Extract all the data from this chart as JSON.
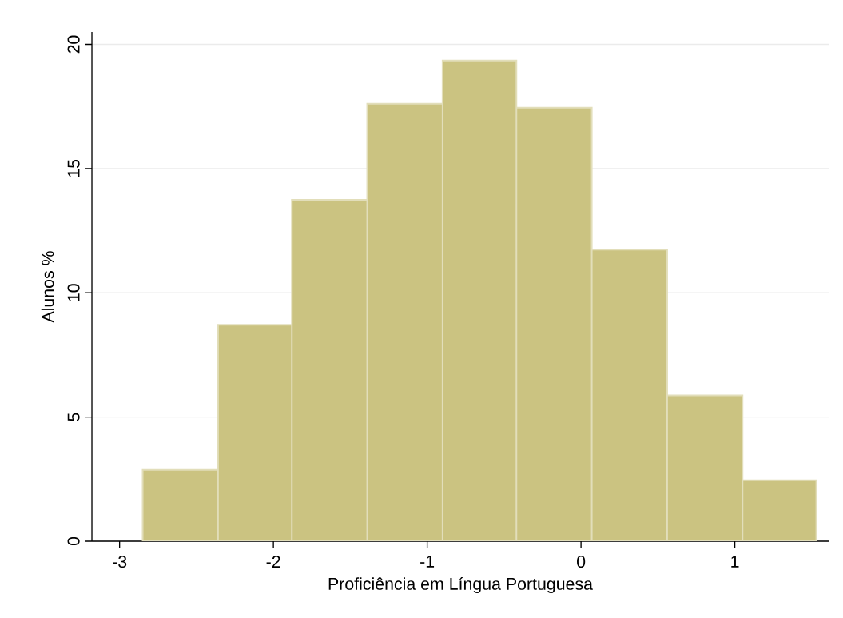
{
  "chart_data": {
    "type": "histogram",
    "xlabel": "Proficiência em Língua Portuguesa",
    "ylabel": "Alunos %",
    "bins": [
      -2.85,
      -2.36,
      -1.88,
      -1.39,
      -0.9,
      -0.42,
      0.07,
      0.56,
      1.05,
      1.53
    ],
    "values": [
      2.87,
      8.71,
      13.74,
      17.61,
      19.35,
      17.45,
      11.74,
      5.87,
      2.45
    ],
    "color": "#cbc381",
    "xlim": [
      -3.18,
      1.61
    ],
    "ylim": [
      0,
      20.5
    ],
    "xticks": [
      -3,
      -2,
      -1,
      0,
      1
    ],
    "yticks": [
      0,
      5,
      10,
      15,
      20
    ],
    "grid": "y"
  }
}
